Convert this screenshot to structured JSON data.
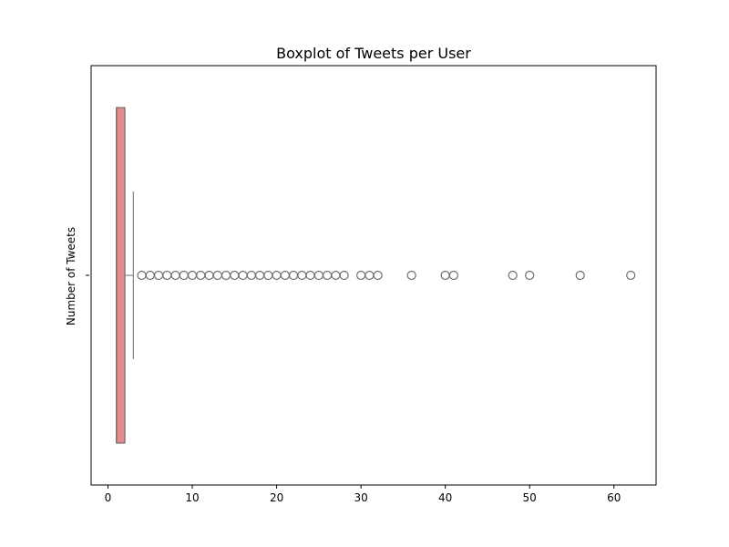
{
  "chart_data": {
    "type": "boxplot",
    "orientation": "horizontal",
    "title": "Boxplot of Tweets per User",
    "xlabel": "",
    "ylabel": "Number of Tweets",
    "xlim": [
      -2,
      65
    ],
    "xticks": [
      0,
      10,
      20,
      30,
      40,
      50,
      60
    ],
    "grid": false,
    "box": {
      "min": 1,
      "q1": 1,
      "median": 1,
      "q3": 2,
      "whisker_low": 1,
      "whisker_high": 3,
      "fill_color": "#e48c8c",
      "edge_color": "#6e6e6e"
    },
    "outliers": [
      4,
      5,
      6,
      7,
      8,
      9,
      10,
      11,
      12,
      13,
      14,
      15,
      16,
      17,
      18,
      19,
      20,
      21,
      22,
      23,
      24,
      25,
      26,
      27,
      28,
      30,
      31,
      32,
      36,
      40,
      41,
      48,
      50,
      56,
      62
    ],
    "outlier_color": "#6e6e6e"
  }
}
